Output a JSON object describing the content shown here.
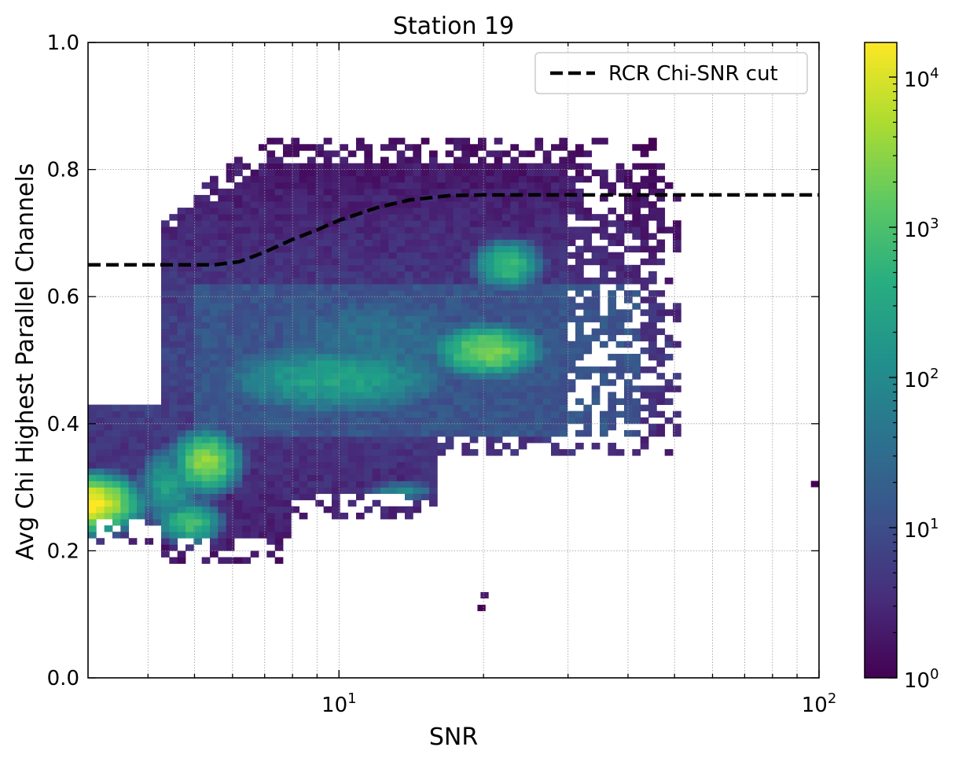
{
  "chart_data": {
    "type": "heatmap",
    "title": "Station 19",
    "xlabel": "SNR",
    "ylabel": "Avg Chi Highest Parallel Channels",
    "xscale": "log",
    "xlim": [
      3,
      100
    ],
    "ylim": [
      0.0,
      1.0
    ],
    "x_ticks": [
      {
        "value": 10,
        "base": "10",
        "exp": "1"
      },
      {
        "value": 100,
        "base": "10",
        "exp": "2"
      }
    ],
    "y_ticks": [
      {
        "value": 0.0,
        "label": "0.0"
      },
      {
        "value": 0.2,
        "label": "0.2"
      },
      {
        "value": 0.4,
        "label": "0.4"
      },
      {
        "value": 0.6,
        "label": "0.6"
      },
      {
        "value": 0.8,
        "label": "0.8"
      },
      {
        "value": 1.0,
        "label": "1.0"
      }
    ],
    "grid": true,
    "colormap": "viridis",
    "colorbar": {
      "scale": "log",
      "range": [
        1,
        17000
      ],
      "ticks": [
        {
          "value": 1,
          "base": "10",
          "exp": "0"
        },
        {
          "value": 10,
          "base": "10",
          "exp": "1"
        },
        {
          "value": 100,
          "base": "10",
          "exp": "2"
        },
        {
          "value": 1000,
          "base": "10",
          "exp": "3"
        },
        {
          "value": 10000,
          "base": "10",
          "exp": "4"
        }
      ]
    },
    "legend": {
      "position": "top-right",
      "entries": [
        {
          "label": "RCR Chi-SNR cut",
          "style": "dashed",
          "color": "#000000"
        }
      ]
    },
    "cut_line": {
      "name": "RCR Chi-SNR cut",
      "x": [
        3,
        4,
        5.5,
        6.2,
        7,
        8,
        9,
        10,
        12,
        14,
        17,
        20,
        100
      ],
      "y": [
        0.65,
        0.65,
        0.65,
        0.655,
        0.67,
        0.69,
        0.705,
        0.72,
        0.74,
        0.752,
        0.759,
        0.76,
        0.76
      ]
    },
    "hotspots": [
      {
        "snr": 3.0,
        "chi": 0.275,
        "peak_count": 17000
      },
      {
        "snr": 5.3,
        "chi": 0.34,
        "peak_count": 3500
      },
      {
        "snr": 4.9,
        "chi": 0.245,
        "peak_count": 900
      },
      {
        "snr": 4.5,
        "chi": 0.3,
        "peak_count": 200
      },
      {
        "snr": 20.5,
        "chi": 0.515,
        "peak_count": 2500
      },
      {
        "snr": 9.8,
        "chi": 0.47,
        "peak_count": 300
      },
      {
        "snr": 22.5,
        "chi": 0.65,
        "peak_count": 700
      },
      {
        "snr": 13.5,
        "chi": 0.295,
        "peak_count": 120
      }
    ],
    "isolated_bins": [
      {
        "snr": 100,
        "chi": 0.305,
        "count": 1
      },
      {
        "snr": 20.5,
        "chi": 0.13,
        "count": 2
      },
      {
        "snr": 20.2,
        "chi": 0.11,
        "count": 1
      }
    ]
  }
}
